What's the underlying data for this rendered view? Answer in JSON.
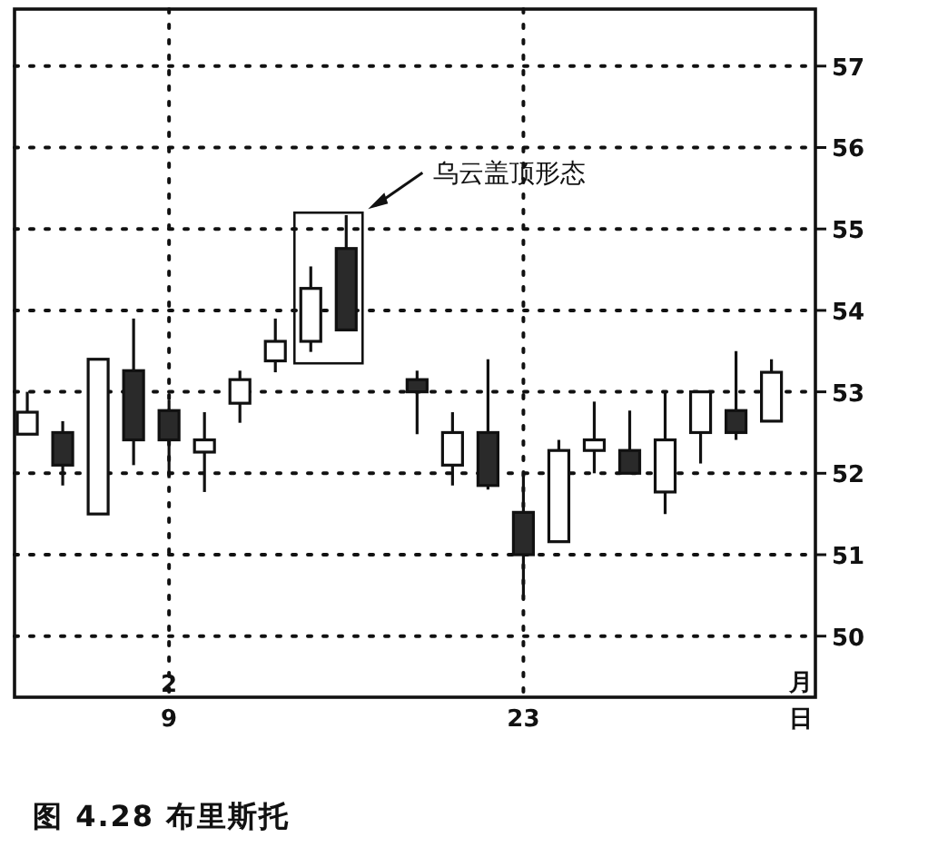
{
  "chart_data": {
    "type": "candlestick",
    "categories": [
      null,
      null,
      null,
      null,
      "9",
      null,
      null,
      null,
      null,
      null,
      null,
      null,
      null,
      null,
      "23",
      null,
      null,
      null,
      null,
      null,
      null,
      null
    ],
    "ohlc": [
      [
        52.48,
        53.0,
        52.48,
        52.75
      ],
      [
        52.5,
        52.64,
        51.85,
        52.1
      ],
      [
        51.5,
        53.4,
        51.5,
        53.4
      ],
      [
        53.26,
        53.9,
        52.1,
        52.41
      ],
      [
        52.77,
        52.9,
        51.94,
        52.41
      ],
      [
        52.26,
        52.75,
        51.77,
        52.41
      ],
      [
        52.86,
        53.26,
        52.62,
        53.15
      ],
      [
        53.38,
        53.9,
        53.24,
        53.62
      ],
      [
        53.62,
        54.54,
        53.49,
        54.27
      ],
      [
        54.76,
        55.17,
        53.76,
        53.76
      ],
      null,
      [
        53.15,
        53.26,
        52.48,
        53.0
      ],
      [
        52.1,
        52.75,
        51.85,
        52.5
      ],
      [
        52.5,
        53.4,
        51.8,
        51.85
      ],
      [
        51.52,
        52.0,
        50.45,
        51.0
      ],
      [
        51.16,
        52.41,
        51.16,
        52.28
      ],
      [
        52.28,
        52.88,
        52.0,
        52.41
      ],
      [
        52.28,
        52.77,
        52.0,
        52.0
      ],
      [
        51.77,
        53.0,
        51.5,
        52.41
      ],
      [
        52.5,
        53.0,
        52.12,
        53.0
      ],
      [
        52.77,
        53.5,
        52.41,
        52.5
      ],
      [
        52.64,
        53.4,
        52.64,
        53.24
      ]
    ],
    "ylim": [
      49.25,
      57.7
    ],
    "yticks": [
      50,
      51,
      52,
      53,
      54,
      55,
      56,
      57
    ],
    "grid": true,
    "annotations": [
      "乌云盖顶形态",
      "2",
      "月",
      "日",
      "图 4.28 布里斯托"
    ]
  }
}
